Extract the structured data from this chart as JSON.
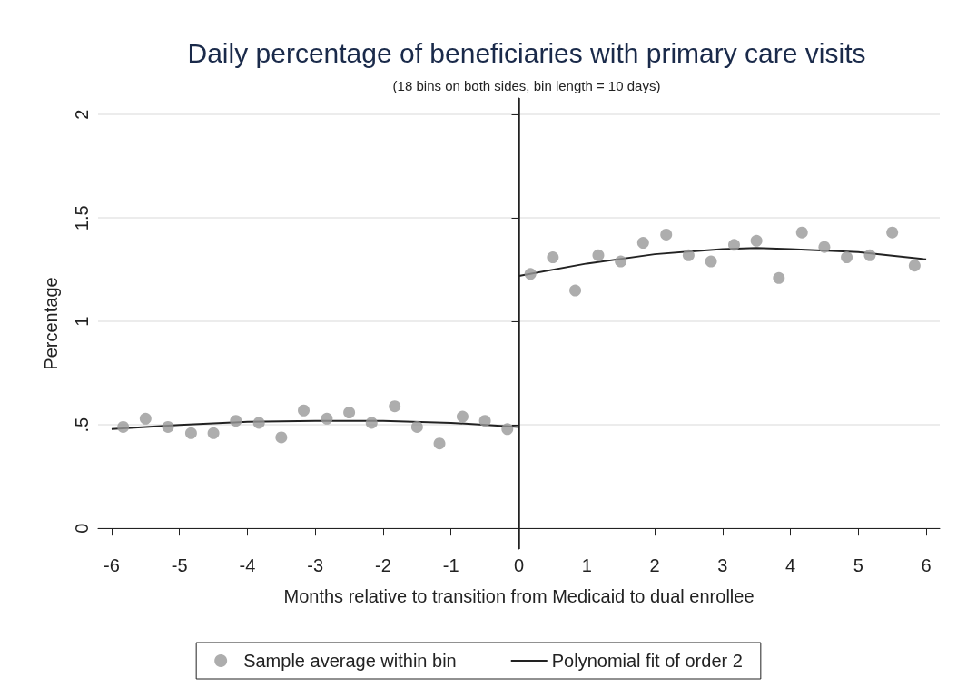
{
  "chart_data": {
    "type": "scatter",
    "title": "Daily percentage of beneficiaries with primary care visits",
    "subtitle": "(18 bins on both sides, bin length = 10 days)",
    "xlabel": "Months relative to transition from Medicaid to dual enrollee",
    "ylabel": "Percentage",
    "series": [
      {
        "name": "Sample average within bin",
        "color": "#999999",
        "marker": "circle",
        "x": [
          -5.83,
          -5.5,
          -5.17,
          -4.83,
          -4.5,
          -4.17,
          -3.83,
          -3.5,
          -3.17,
          -2.83,
          -2.5,
          -2.17,
          -1.83,
          -1.5,
          -1.17,
          -0.83,
          -0.5,
          -0.17,
          0.17,
          0.5,
          0.83,
          1.17,
          1.5,
          1.83,
          2.17,
          2.5,
          2.83,
          3.17,
          3.5,
          3.83,
          4.17,
          4.5,
          4.83,
          5.17,
          5.5,
          5.83
        ],
        "values": [
          0.49,
          0.53,
          0.49,
          0.46,
          0.46,
          0.52,
          0.51,
          0.44,
          0.57,
          0.53,
          0.56,
          0.51,
          0.59,
          0.49,
          0.41,
          0.54,
          0.52,
          0.48,
          1.23,
          1.31,
          1.15,
          1.32,
          1.29,
          1.38,
          1.42,
          1.32,
          1.29,
          1.37,
          1.39,
          1.21,
          1.43,
          1.36,
          1.31,
          1.32,
          1.43,
          1.27
        ]
      },
      {
        "name": "Polynomial fit of order 2",
        "type": "line",
        "color": "#222222",
        "marker": "none",
        "line_style": "solid",
        "x": [
          -6,
          -5,
          -4,
          -3,
          -2,
          -1,
          0
        ],
        "values": [
          0.48,
          0.5,
          0.515,
          0.52,
          0.52,
          0.51,
          0.49
        ]
      },
      {
        "type": "line",
        "color": "#222222",
        "marker": "none",
        "line_style": "solid",
        "x": [
          0,
          1,
          2,
          3,
          3.5,
          4,
          5,
          6
        ],
        "values": [
          1.22,
          1.28,
          1.325,
          1.35,
          1.355,
          1.35,
          1.335,
          1.3
        ]
      }
    ],
    "xlim": [
      -6.2,
      6.2
    ],
    "xticks": [
      -6,
      -5,
      -4,
      -3,
      -2,
      -1,
      0,
      1,
      2,
      3,
      4,
      5,
      6
    ],
    "ylim": [
      -0.1,
      2.08
    ],
    "yticks": [
      0,
      {
        "value": 0.5,
        "label": ".5"
      },
      1,
      1.5,
      2
    ],
    "ref_lines": [
      {
        "axis": "x",
        "value": 0,
        "label": null,
        "color": "#222222"
      }
    ],
    "grid": "y",
    "legend": "bottom"
  }
}
